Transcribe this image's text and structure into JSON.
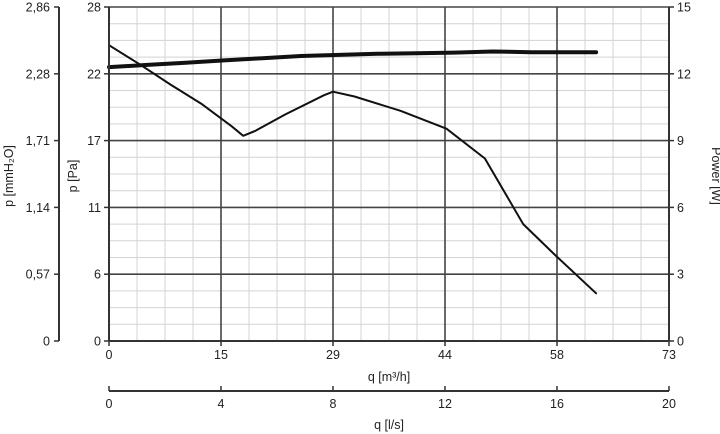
{
  "chart_data": {
    "type": "line",
    "grid": true,
    "x_axis_main": {
      "label": "q [m³/h]",
      "range": [
        0,
        73
      ],
      "ticks": [
        "0",
        "15",
        "29",
        "44",
        "58",
        "73"
      ],
      "tick_values": [
        0,
        14.6,
        29.2,
        43.8,
        58.4,
        73
      ]
    },
    "x_axis_secondary": {
      "label": "q [l/s]",
      "range": [
        0,
        20
      ],
      "ticks": [
        "0",
        "4",
        "8",
        "12",
        "16",
        "20"
      ],
      "tick_values": [
        0,
        4,
        8,
        12,
        16,
        20
      ]
    },
    "y_axis_left_outer": {
      "label": "p [mmH₂O]",
      "ticks": [
        "0",
        "0,57",
        "1,14",
        "1,71",
        "2,28",
        "2,86"
      ]
    },
    "y_axis_left_inner": {
      "label": "p [Pa]",
      "range": [
        0,
        28
      ],
      "ticks": [
        "0",
        "6",
        "11",
        "17",
        "22",
        "28"
      ],
      "tick_values": [
        0,
        5.6,
        11.2,
        16.8,
        22.4,
        28
      ]
    },
    "y_axis_right": {
      "label": "Power [W]",
      "range": [
        0,
        15
      ],
      "ticks": [
        "0",
        "3",
        "6",
        "9",
        "12",
        "15"
      ],
      "tick_values": [
        0,
        3,
        6,
        9,
        12,
        15
      ]
    },
    "series": [
      {
        "axis": "pressure",
        "color": "#111111",
        "x": [
          0,
          4,
          8,
          12,
          16,
          17.5,
          19,
          23,
          28,
          29.2,
          32,
          38,
          44,
          49,
          54,
          58,
          63.5
        ],
        "y": [
          24.8,
          23.2,
          21.5,
          19.9,
          18.0,
          17.2,
          17.6,
          19.0,
          20.6,
          20.9,
          20.5,
          19.3,
          17.8,
          15.3,
          9.8,
          7.3,
          4.0
        ]
      },
      {
        "axis": "power",
        "color": "#111111",
        "x": [
          0,
          5,
          10,
          15,
          20,
          25,
          30,
          35,
          40,
          45,
          50,
          55,
          60,
          63.5
        ],
        "y": [
          12.3,
          12.4,
          12.5,
          12.6,
          12.7,
          12.8,
          12.85,
          12.9,
          12.92,
          12.95,
          13.0,
          12.97,
          12.97,
          12.97
        ]
      }
    ]
  }
}
